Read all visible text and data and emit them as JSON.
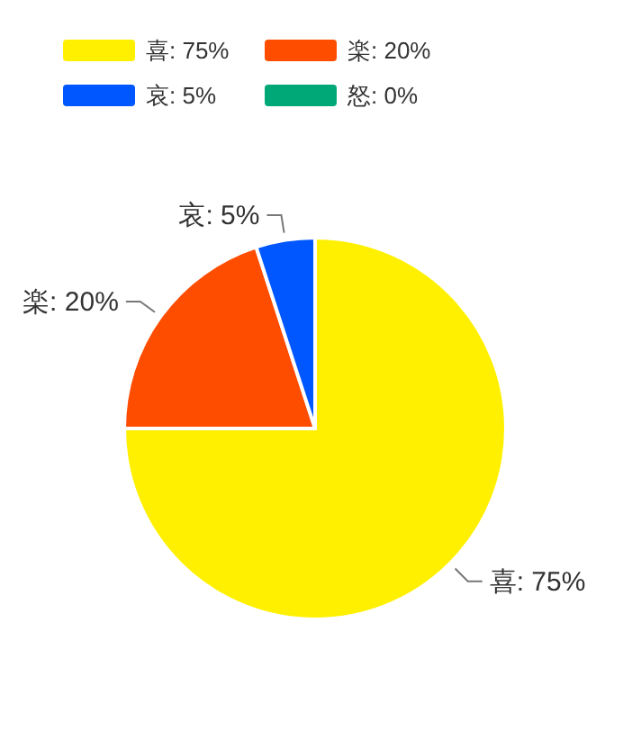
{
  "chart_data": {
    "type": "pie",
    "categories": [
      "喜",
      "楽",
      "哀",
      "怒"
    ],
    "values": [
      75,
      20,
      5,
      0
    ],
    "colors": [
      "#fff000",
      "#ff4d00",
      "#0057ff",
      "#00a878"
    ],
    "value_labels": [
      ": 75%",
      ": 20%",
      ": 5%",
      ": 0%"
    ],
    "legend": "top"
  }
}
